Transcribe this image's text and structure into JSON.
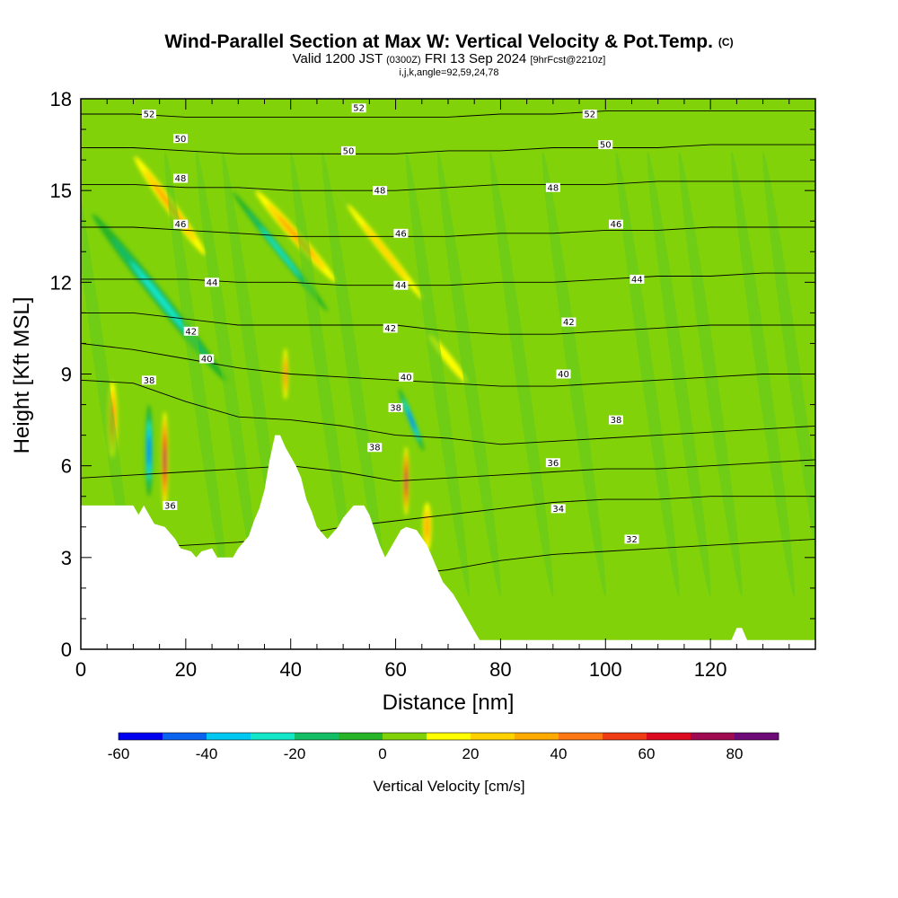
{
  "title": {
    "main": "Wind-Parallel Section at Max W: Vertical Velocity & Pot.Temp.",
    "copyright": "(C)",
    "valid_prefix": "Valid 1200 JST",
    "valid_zulu": "(0300Z)",
    "valid_date": "FRI 13 Sep 2024",
    "forecast": "[9hrFcst@2210z]",
    "indices": "i,j,k,angle=92,59,24,78"
  },
  "chart_data": {
    "type": "heatmap",
    "xlabel": "Distance [nm]",
    "ylabel": "Height [Kft MSL]",
    "xlim": [
      0,
      140
    ],
    "ylim": [
      0,
      18
    ],
    "x_ticks": [
      0,
      20,
      40,
      60,
      80,
      100,
      120
    ],
    "y_ticks": [
      0,
      3,
      6,
      9,
      12,
      15,
      18
    ],
    "colorbar": {
      "label": "Vertical Velocity [cm/s]",
      "ticks": [
        -60,
        -40,
        -20,
        0,
        20,
        40,
        60,
        80
      ],
      "bounds": [
        -60,
        -50,
        -40,
        -30,
        -20,
        -10,
        0,
        10,
        20,
        30,
        40,
        50,
        60,
        70,
        80,
        90
      ],
      "colors": [
        "#0000f0",
        "#0a64f0",
        "#00c8f0",
        "#14e6c8",
        "#14be64",
        "#28b428",
        "#82d20a",
        "#ffff00",
        "#ffd200",
        "#ffaa00",
        "#ff7814",
        "#f03c14",
        "#dc0a1e",
        "#a00a50",
        "#6e0a78"
      ]
    },
    "theta_contours": [
      {
        "label": "32",
        "h": [
          1.2,
          1.2,
          1.3,
          1.6,
          2.0,
          2.2,
          2.4,
          2.6,
          2.9,
          3.1,
          3.2,
          3.3,
          3.4,
          3.5,
          3.6
        ]
      },
      {
        "label": "34",
        "h": [
          3.3,
          3.3,
          3.4,
          3.5,
          3.7,
          4.0,
          4.2,
          4.4,
          4.6,
          4.8,
          4.9,
          4.9,
          5.0,
          5.0,
          5.0
        ]
      },
      {
        "label": "36",
        "h": [
          5.6,
          5.7,
          5.8,
          5.9,
          6.0,
          5.8,
          5.5,
          5.6,
          5.7,
          5.8,
          5.9,
          5.9,
          6.0,
          6.1,
          6.2
        ]
      },
      {
        "label": "38",
        "h": [
          8.8,
          8.7,
          8.1,
          7.6,
          7.5,
          7.3,
          7.0,
          6.9,
          6.7,
          6.8,
          6.9,
          7.0,
          7.1,
          7.2,
          7.3
        ]
      },
      {
        "label": "40",
        "h": [
          10.0,
          9.8,
          9.5,
          9.2,
          9.0,
          8.9,
          8.8,
          8.7,
          8.6,
          8.6,
          8.7,
          8.8,
          8.9,
          9.0,
          9.0
        ]
      },
      {
        "label": "42",
        "h": [
          11.0,
          11.0,
          10.8,
          10.6,
          10.6,
          10.6,
          10.6,
          10.4,
          10.3,
          10.3,
          10.4,
          10.5,
          10.6,
          10.6,
          10.6
        ]
      },
      {
        "label": "44",
        "h": [
          12.1,
          12.1,
          12.1,
          12.0,
          12.0,
          11.9,
          11.9,
          11.9,
          12.0,
          12.0,
          12.1,
          12.2,
          12.2,
          12.3,
          12.3
        ]
      },
      {
        "label": "46",
        "h": [
          13.8,
          13.8,
          13.7,
          13.6,
          13.5,
          13.5,
          13.5,
          13.5,
          13.6,
          13.6,
          13.7,
          13.7,
          13.8,
          13.8,
          13.8
        ]
      },
      {
        "label": "48",
        "h": [
          15.2,
          15.2,
          15.1,
          15.1,
          15.0,
          15.0,
          15.0,
          15.1,
          15.2,
          15.2,
          15.2,
          15.3,
          15.3,
          15.3,
          15.3
        ]
      },
      {
        "label": "50",
        "h": [
          16.4,
          16.4,
          16.3,
          16.2,
          16.2,
          16.2,
          16.2,
          16.3,
          16.3,
          16.4,
          16.4,
          16.4,
          16.5,
          16.5,
          16.5
        ]
      },
      {
        "label": "52",
        "h": [
          17.5,
          17.5,
          17.4,
          17.4,
          17.4,
          17.4,
          17.4,
          17.4,
          17.5,
          17.5,
          17.6,
          17.6,
          17.6,
          17.6,
          17.6
        ]
      }
    ],
    "contour_x": [
      0,
      10,
      20,
      30,
      40,
      50,
      60,
      70,
      80,
      90,
      100,
      110,
      120,
      130,
      140
    ],
    "contour_label_points": [
      {
        "label": "52",
        "x": 13,
        "y": 17.5
      },
      {
        "label": "52",
        "x": 53,
        "y": 17.7
      },
      {
        "label": "52",
        "x": 97,
        "y": 17.5
      },
      {
        "label": "50",
        "x": 19,
        "y": 16.7
      },
      {
        "label": "50",
        "x": 51,
        "y": 16.3
      },
      {
        "label": "50",
        "x": 100,
        "y": 16.5
      },
      {
        "label": "48",
        "x": 19,
        "y": 15.4
      },
      {
        "label": "48",
        "x": 57,
        "y": 15.0
      },
      {
        "label": "48",
        "x": 90,
        "y": 15.1
      },
      {
        "label": "46",
        "x": 19,
        "y": 13.9
      },
      {
        "label": "46",
        "x": 61,
        "y": 13.6
      },
      {
        "label": "46",
        "x": 102,
        "y": 13.9
      },
      {
        "label": "44",
        "x": 25,
        "y": 12.0
      },
      {
        "label": "44",
        "x": 61,
        "y": 11.9
      },
      {
        "label": "44",
        "x": 106,
        "y": 12.1
      },
      {
        "label": "42",
        "x": 21,
        "y": 10.4
      },
      {
        "label": "42",
        "x": 59,
        "y": 10.5
      },
      {
        "label": "42",
        "x": 93,
        "y": 10.7
      },
      {
        "label": "40",
        "x": 24,
        "y": 9.5
      },
      {
        "label": "40",
        "x": 62,
        "y": 8.9
      },
      {
        "label": "40",
        "x": 92,
        "y": 9.0
      },
      {
        "label": "38",
        "x": 13,
        "y": 8.8
      },
      {
        "label": "38",
        "x": 60,
        "y": 7.9
      },
      {
        "label": "38",
        "x": 56,
        "y": 6.6
      },
      {
        "label": "38",
        "x": 102,
        "y": 7.5
      },
      {
        "label": "36",
        "x": 90,
        "y": 6.1
      },
      {
        "label": "36",
        "x": 17,
        "y": 4.7
      },
      {
        "label": "34",
        "x": 91,
        "y": 4.6
      },
      {
        "label": "32",
        "x": 105,
        "y": 3.6
      }
    ],
    "terrain": [
      [
        0,
        4.7
      ],
      [
        4,
        4.7
      ],
      [
        6,
        4.7
      ],
      [
        10,
        4.7
      ],
      [
        11,
        4.4
      ],
      [
        12,
        4.7
      ],
      [
        14,
        4.1
      ],
      [
        16,
        4.0
      ],
      [
        18,
        3.6
      ],
      [
        19,
        3.3
      ],
      [
        21,
        3.2
      ],
      [
        22,
        3.0
      ],
      [
        23,
        3.2
      ],
      [
        25,
        3.3
      ],
      [
        26,
        3.0
      ],
      [
        29,
        3.0
      ],
      [
        30,
        3.3
      ],
      [
        32,
        3.7
      ],
      [
        33,
        4.2
      ],
      [
        34,
        4.6
      ],
      [
        35,
        5.2
      ],
      [
        36,
        6.2
      ],
      [
        37,
        7.0
      ],
      [
        38,
        7.0
      ],
      [
        39,
        6.6
      ],
      [
        41,
        6.0
      ],
      [
        42,
        5.6
      ],
      [
        43,
        4.9
      ],
      [
        44,
        4.5
      ],
      [
        45,
        4.0
      ],
      [
        46,
        3.8
      ],
      [
        47,
        3.6
      ],
      [
        48,
        3.8
      ],
      [
        49,
        4.0
      ],
      [
        50,
        4.3
      ],
      [
        52,
        4.7
      ],
      [
        54,
        4.7
      ],
      [
        55,
        4.4
      ],
      [
        56,
        3.9
      ],
      [
        57,
        3.4
      ],
      [
        58,
        3.0
      ],
      [
        59,
        3.3
      ],
      [
        60,
        3.6
      ],
      [
        61,
        3.9
      ],
      [
        62,
        4.0
      ],
      [
        64,
        3.9
      ],
      [
        66,
        3.4
      ],
      [
        67,
        3.0
      ],
      [
        68,
        2.6
      ],
      [
        69,
        2.2
      ],
      [
        70,
        2.0
      ],
      [
        71,
        1.8
      ],
      [
        72,
        1.5
      ],
      [
        73,
        1.2
      ],
      [
        74,
        0.9
      ],
      [
        75,
        0.6
      ],
      [
        76,
        0.3
      ],
      [
        78,
        0.3
      ],
      [
        124,
        0.3
      ],
      [
        125,
        0.7
      ],
      [
        126,
        0.7
      ],
      [
        127,
        0.3
      ],
      [
        140,
        0.3
      ]
    ],
    "vertical_velocity_features": [
      {
        "kind": "updraft",
        "x": 17,
        "y": 14.5,
        "w": 2.5,
        "h": 5.0,
        "tilt": 0.18,
        "peak": 35
      },
      {
        "kind": "downdraft",
        "x": 15,
        "y": 11.5,
        "w": 2.5,
        "h": 7.0,
        "tilt": 0.2,
        "peak": -25
      },
      {
        "kind": "updraft",
        "x": 16,
        "y": 6.2,
        "w": 1.4,
        "h": 3.5,
        "tilt": 0.0,
        "peak": 80
      },
      {
        "kind": "downdraft",
        "x": 13,
        "y": 6.5,
        "w": 1.5,
        "h": 3.0,
        "tilt": 0.0,
        "peak": -50
      },
      {
        "kind": "updraft",
        "x": 6,
        "y": 7.5,
        "w": 2.2,
        "h": 3.0,
        "tilt": 0.0,
        "peak": 45
      },
      {
        "kind": "updraft",
        "x": 41,
        "y": 13.5,
        "w": 2.5,
        "h": 5.0,
        "tilt": 0.22,
        "peak": 35
      },
      {
        "kind": "updraft",
        "x": 39,
        "y": 9.0,
        "w": 1.2,
        "h": 2.0,
        "tilt": 0.0,
        "peak": 50
      },
      {
        "kind": "downdraft",
        "x": 38,
        "y": 13.0,
        "w": 1.5,
        "h": 5.0,
        "tilt": 0.2,
        "peak": -25
      },
      {
        "kind": "updraft",
        "x": 62,
        "y": 5.5,
        "w": 1.2,
        "h": 2.5,
        "tilt": 0.0,
        "peak": 80
      },
      {
        "kind": "downdraft",
        "x": 63,
        "y": 7.5,
        "w": 1.2,
        "h": 2.2,
        "tilt": 0.1,
        "peak": -45
      },
      {
        "kind": "updraft",
        "x": 66,
        "y": 4.0,
        "w": 2.0,
        "h": 2.0,
        "tilt": 0.0,
        "peak": 40
      },
      {
        "kind": "updraft",
        "x": 58,
        "y": 13.0,
        "w": 2.0,
        "h": 5.5,
        "tilt": 0.2,
        "peak": 25
      },
      {
        "kind": "updraft",
        "x": 70,
        "y": 9.5,
        "w": 2.5,
        "h": 3.5,
        "tilt": 0.2,
        "peak": 22
      }
    ]
  }
}
